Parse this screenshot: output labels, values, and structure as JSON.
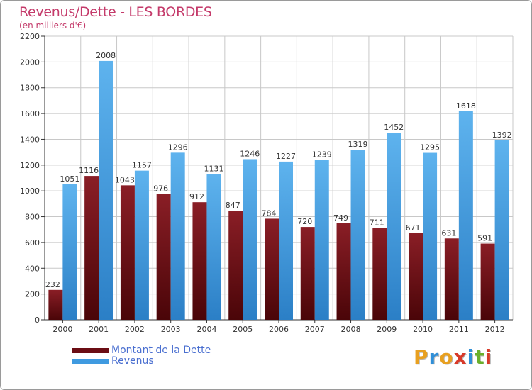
{
  "header": {
    "title": "Revenus/Dette - LES BORDES",
    "subtitle": "(en milliers d'€)"
  },
  "colors": {
    "dette": "#6b0d14",
    "revenus": "#3f9ae0",
    "title": "#c43a6a",
    "grid": "#c8c8c8"
  },
  "chart_data": {
    "type": "bar",
    "title": "Revenus/Dette - LES BORDES",
    "ylabel": "(en milliers d'€)",
    "xlabel": "",
    "categories": [
      "2000",
      "2001",
      "2002",
      "2003",
      "2004",
      "2005",
      "2006",
      "2007",
      "2008",
      "2009",
      "2010",
      "2011",
      "2012"
    ],
    "series": [
      {
        "name": "Montant de la Dette",
        "values": [
          232,
          1116,
          1043,
          976,
          912,
          847,
          784,
          720,
          749,
          711,
          671,
          631,
          591
        ]
      },
      {
        "name": "Revenus",
        "values": [
          1051,
          2008,
          1157,
          1296,
          1131,
          1246,
          1227,
          1239,
          1319,
          1452,
          1295,
          1618,
          1392
        ]
      }
    ],
    "ylim": [
      0,
      2200
    ],
    "yticks": [
      0,
      200,
      400,
      600,
      800,
      1000,
      1200,
      1400,
      1600,
      1800,
      2000,
      2200
    ],
    "grid": true,
    "legend_position": "bottom-left"
  },
  "legend": {
    "items": [
      {
        "label": "Montant de la Dette"
      },
      {
        "label": "Revenus"
      }
    ]
  },
  "logo": {
    "letters": [
      "P",
      "r",
      "o",
      "x",
      "i",
      "t",
      "i"
    ],
    "letter_colors": [
      "#e8a020",
      "#2f8fd8",
      "#e8a020",
      "#d83a2a",
      "#2f8fd8",
      "#6ab02a",
      "#d83a2a"
    ]
  }
}
